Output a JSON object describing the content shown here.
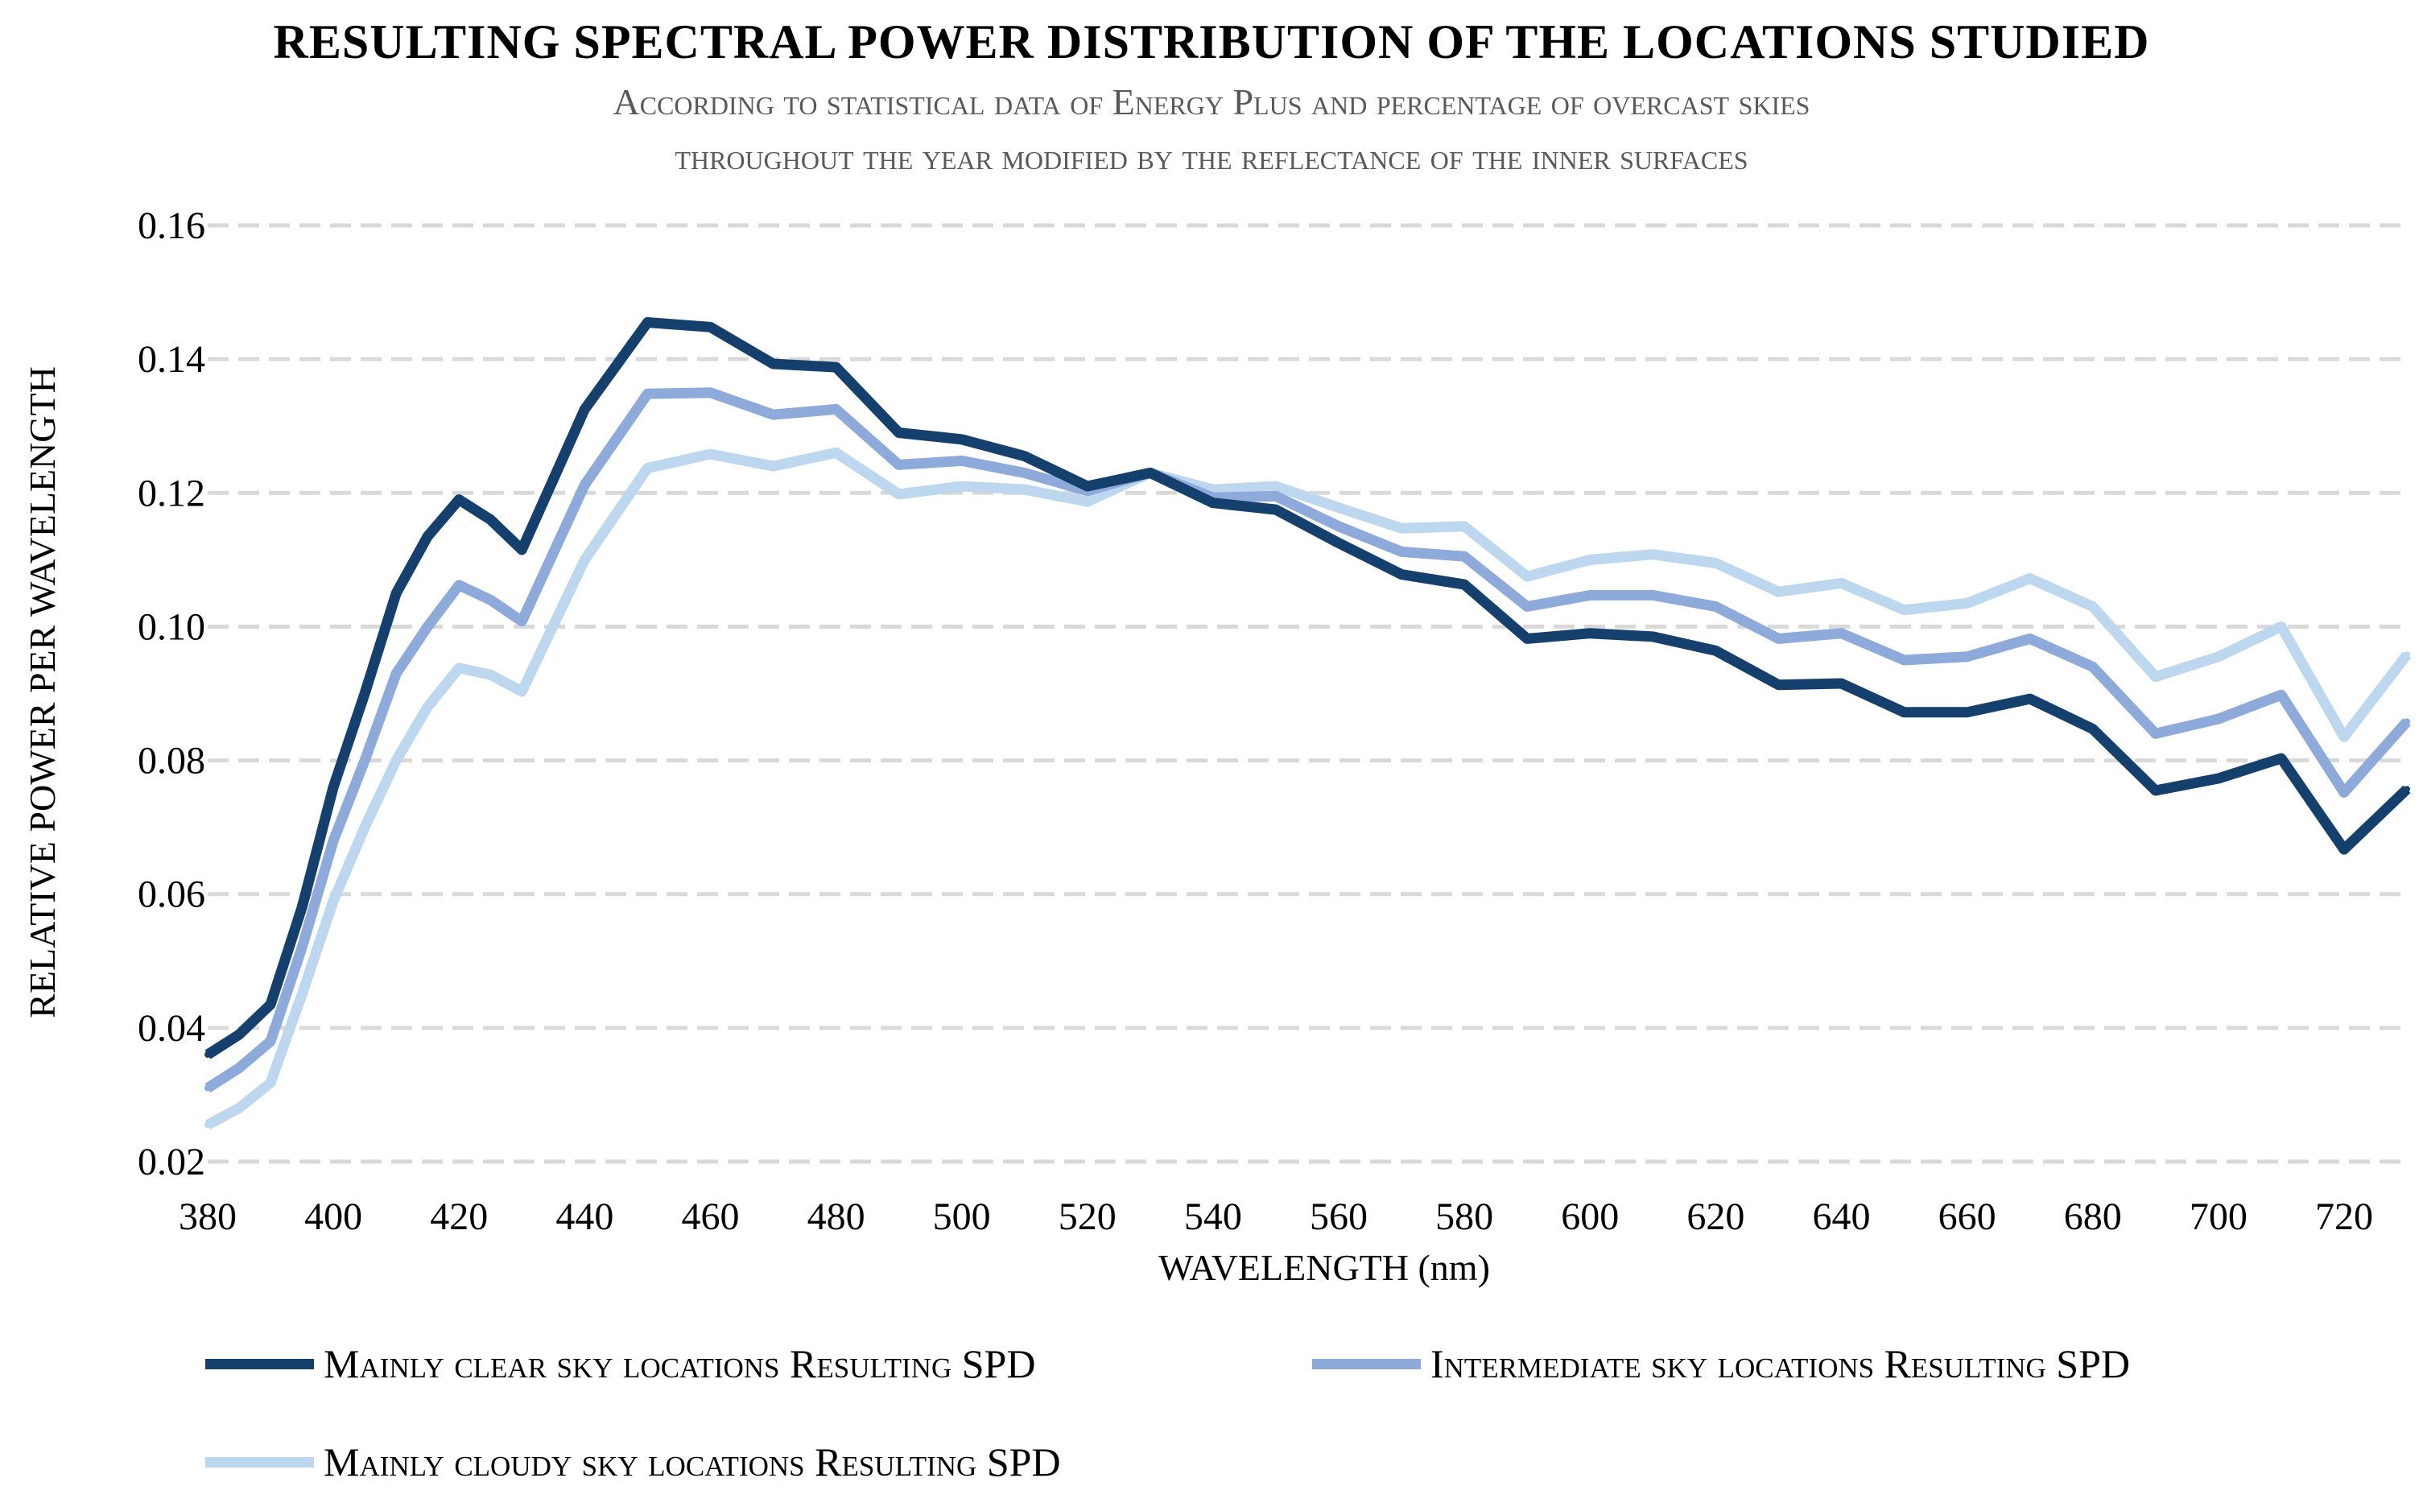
{
  "chart_data": {
    "type": "line",
    "title": "RESULTING SPECTRAL POWER DISTRIBUTION OF THE LOCATIONS STUDIED",
    "subtitle_line1": "According to statistical data of Energy Plus and percentage of overcast skies",
    "subtitle_line2": "throughout the year modified by the reflectance of the inner surfaces",
    "xlabel": "WAVELENGTH (nm)",
    "ylabel": "RELATIVE POWER PER WAVELENGTH",
    "xlim": [
      380,
      730
    ],
    "ylim": [
      0.02,
      0.16
    ],
    "x_ticks": [
      "380",
      "400",
      "420",
      "440",
      "460",
      "480",
      "500",
      "520",
      "540",
      "560",
      "580",
      "600",
      "620",
      "640",
      "660",
      "680",
      "700",
      "720"
    ],
    "y_ticks": [
      "0.02",
      "0.04",
      "0.06",
      "0.08",
      "0.10",
      "0.12",
      "0.14",
      "0.16"
    ],
    "grid": "horizontal dashed",
    "legend_position": "bottom",
    "x": [
      380,
      385,
      390,
      395,
      400,
      405,
      410,
      415,
      420,
      425,
      430,
      440,
      450,
      460,
      470,
      480,
      490,
      500,
      510,
      520,
      530,
      540,
      550,
      560,
      570,
      580,
      590,
      600,
      610,
      620,
      630,
      640,
      650,
      660,
      670,
      680,
      690,
      700,
      710,
      720,
      730
    ],
    "series": [
      {
        "name": "Mainly clear sky locations Resulting SPD",
        "color": "#15406e",
        "values": [
          0.036,
          0.039,
          0.0435,
          0.058,
          0.076,
          0.09,
          0.105,
          0.1135,
          0.119,
          0.116,
          0.1115,
          0.1325,
          0.1455,
          0.1448,
          0.1393,
          0.1388,
          0.129,
          0.128,
          0.1255,
          0.121,
          0.123,
          0.1185,
          0.1175,
          0.1125,
          0.1078,
          0.1063,
          0.0982,
          0.099,
          0.0985,
          0.0964,
          0.0913,
          0.0915,
          0.0872,
          0.0872,
          0.0892,
          0.0847,
          0.0755,
          0.0773,
          0.0803,
          0.0667,
          0.0757
        ]
      },
      {
        "name": "Intermediate sky locations Resulting SPD",
        "color": "#8eaadb",
        "values": [
          0.031,
          0.034,
          0.038,
          0.052,
          0.068,
          0.08,
          0.093,
          0.1,
          0.1062,
          0.104,
          0.1008,
          0.1212,
          0.1348,
          0.135,
          0.1317,
          0.1325,
          0.1242,
          0.1248,
          0.123,
          0.1203,
          0.123,
          0.1193,
          0.1195,
          0.115,
          0.1112,
          0.1105,
          0.103,
          0.1047,
          0.1047,
          0.103,
          0.0982,
          0.099,
          0.095,
          0.0955,
          0.0982,
          0.094,
          0.084,
          0.0862,
          0.0898,
          0.0752,
          0.0858
        ]
      },
      {
        "name": "Mainly cloudy sky locations Resulting SPD",
        "color": "#bdd7ee",
        "values": [
          0.0255,
          0.028,
          0.0318,
          0.045,
          0.059,
          0.07,
          0.08,
          0.088,
          0.0938,
          0.0928,
          0.0903,
          0.11,
          0.1237,
          0.1258,
          0.124,
          0.126,
          0.1198,
          0.121,
          0.1205,
          0.1187,
          0.123,
          0.1205,
          0.121,
          0.1178,
          0.1147,
          0.115,
          0.1075,
          0.11,
          0.1108,
          0.1095,
          0.1052,
          0.1065,
          0.1025,
          0.1035,
          0.1072,
          0.103,
          0.0925,
          0.0955,
          0.1,
          0.0835,
          0.0958
        ]
      }
    ]
  }
}
